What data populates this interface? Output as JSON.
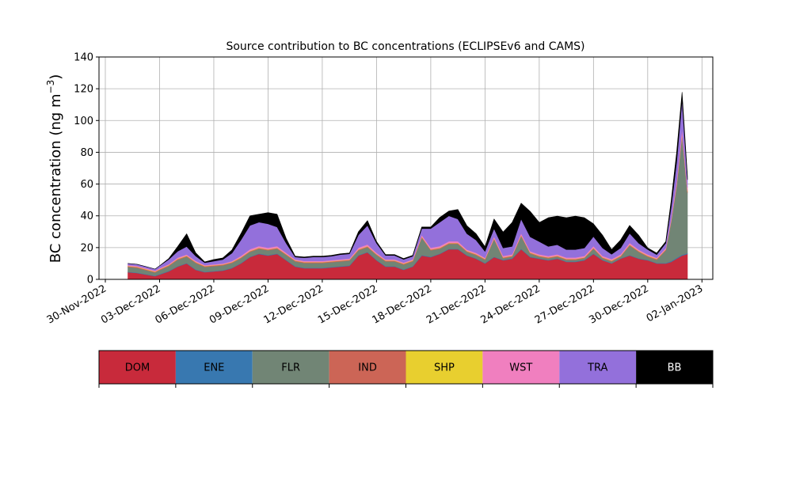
{
  "chart_data": {
    "type": "area",
    "stacked": true,
    "title": "Source contribution to BC concentrations (ECLIPSEv6 and CAMS)",
    "ylabel_main": "BC concentration (ng m",
    "ylabel_sup": "−3",
    "ylabel_close": ")",
    "xlabel": "",
    "ylim": [
      0,
      140
    ],
    "xlim": [
      -0.35,
      33.6
    ],
    "grid": true,
    "y_ticks": [
      0,
      20,
      40,
      60,
      80,
      100,
      120,
      140
    ],
    "x_ticks": [
      {
        "pos": 0,
        "label": "30-Nov-2022"
      },
      {
        "pos": 3,
        "label": "03-Dec-2022"
      },
      {
        "pos": 6,
        "label": "06-Dec-2022"
      },
      {
        "pos": 9,
        "label": "09-Dec-2022"
      },
      {
        "pos": 12,
        "label": "12-Dec-2022"
      },
      {
        "pos": 15,
        "label": "15-Dec-2022"
      },
      {
        "pos": 18,
        "label": "18-Dec-2022"
      },
      {
        "pos": 21,
        "label": "21-Dec-2022"
      },
      {
        "pos": 24,
        "label": "24-Dec-2022"
      },
      {
        "pos": 27,
        "label": "27-Dec-2022"
      },
      {
        "pos": 30,
        "label": "30-Dec-2022"
      },
      {
        "pos": 33,
        "label": "02-Jan-2023"
      }
    ],
    "x_unit": "days since 30-Nov-2022",
    "x": [
      1.25,
      1.75,
      2.25,
      2.75,
      3.0,
      3.5,
      4.0,
      4.5,
      5.0,
      5.5,
      6.0,
      6.5,
      7.0,
      7.5,
      8.0,
      8.5,
      9.0,
      9.5,
      10.0,
      10.5,
      11.0,
      11.5,
      12.0,
      12.5,
      13.0,
      13.5,
      14.0,
      14.5,
      15.0,
      15.5,
      16.0,
      16.5,
      17.0,
      17.5,
      18.0,
      18.5,
      19.0,
      19.5,
      20.0,
      20.5,
      21.0,
      21.5,
      22.0,
      22.5,
      23.0,
      23.5,
      24.0,
      24.5,
      25.0,
      25.5,
      26.0,
      26.5,
      27.0,
      27.5,
      28.0,
      28.5,
      29.0,
      29.5,
      30.0,
      30.5,
      31.0,
      31.3,
      31.6,
      31.9,
      32.2
    ],
    "series": [
      {
        "name": "DOM",
        "color": "#c82a3b",
        "values": [
          4.5,
          4.0,
          3.0,
          2.0,
          3.0,
          5.0,
          8.0,
          10.0,
          6.0,
          4.5,
          5.0,
          5.5,
          7.0,
          10.0,
          14.0,
          16.0,
          15.0,
          16.0,
          12.0,
          8.0,
          7.0,
          7.0,
          7.0,
          7.5,
          8.0,
          8.5,
          15.0,
          17.0,
          12.0,
          8.0,
          8.0,
          6.0,
          8.0,
          15.0,
          14.0,
          16.0,
          19.0,
          19.0,
          15.0,
          13.0,
          10.0,
          14.0,
          12.0,
          13.0,
          19.0,
          14.0,
          13.0,
          12.0,
          13.0,
          11.0,
          11.0,
          12.0,
          16.0,
          12.0,
          10.0,
          13.0,
          15.0,
          13.0,
          12.0,
          10.0,
          10.0,
          11.0,
          13.0,
          15.0,
          16.0
        ]
      },
      {
        "name": "ENE",
        "color": "#3878b0",
        "values": [
          0.3,
          0.3,
          0.3,
          0.3,
          0.3,
          0.3,
          0.3,
          0.3,
          0.3,
          0.3,
          0.3,
          0.3,
          0.3,
          0.3,
          0.3,
          0.3,
          0.3,
          0.3,
          0.3,
          0.3,
          0.3,
          0.3,
          0.3,
          0.3,
          0.3,
          0.3,
          0.3,
          0.3,
          0.3,
          0.3,
          0.3,
          0.3,
          0.3,
          0.3,
          0.3,
          0.3,
          0.3,
          0.3,
          0.3,
          0.3,
          0.3,
          0.3,
          0.3,
          0.3,
          0.3,
          0.3,
          0.3,
          0.3,
          0.3,
          0.3,
          0.3,
          0.3,
          0.3,
          0.3,
          0.3,
          0.3,
          0.3,
          0.3,
          0.3,
          0.3,
          0.3,
          0.5,
          0.5,
          0.5,
          0.5
        ]
      },
      {
        "name": "FLR",
        "color": "#718575",
        "values": [
          3.0,
          3.0,
          2.5,
          2.0,
          2.5,
          3.0,
          4.0,
          4.0,
          4.0,
          3.0,
          3.0,
          3.0,
          3.0,
          3.0,
          3.0,
          3.0,
          3.0,
          3.0,
          3.0,
          3.0,
          3.0,
          3.0,
          3.0,
          3.0,
          3.0,
          3.0,
          3.0,
          3.0,
          3.0,
          3.0,
          3.0,
          3.0,
          3.0,
          11.0,
          4.0,
          3.0,
          3.0,
          3.0,
          2.0,
          2.0,
          2.0,
          11.0,
          1.0,
          1.0,
          8.0,
          2.0,
          1.0,
          1.0,
          1.0,
          1.0,
          1.0,
          1.0,
          3.0,
          1.0,
          1.0,
          1.0,
          6.0,
          4.0,
          2.0,
          2.0,
          8.0,
          25.0,
          45.0,
          75.0,
          38.0
        ]
      },
      {
        "name": "IND",
        "color": "#cc6556",
        "values": [
          0.5,
          0.5,
          0.5,
          0.5,
          0.5,
          0.5,
          0.5,
          0.5,
          0.5,
          0.5,
          0.5,
          0.5,
          0.5,
          0.5,
          0.5,
          0.5,
          0.5,
          0.5,
          0.5,
          0.5,
          0.5,
          0.5,
          0.5,
          0.5,
          0.5,
          0.5,
          0.5,
          0.5,
          0.5,
          0.5,
          0.5,
          0.5,
          0.5,
          0.5,
          0.5,
          0.5,
          0.5,
          0.5,
          0.5,
          0.5,
          0.5,
          0.5,
          0.5,
          0.5,
          0.5,
          0.5,
          0.5,
          0.5,
          0.5,
          0.5,
          0.5,
          0.5,
          0.5,
          0.5,
          0.5,
          0.5,
          0.5,
          0.5,
          0.5,
          0.5,
          0.5,
          0.5,
          1.0,
          1.0,
          1.0
        ]
      },
      {
        "name": "SHP",
        "color": "#e8cf2f",
        "values": [
          0.2,
          0.2,
          0.2,
          0.2,
          0.2,
          0.2,
          0.2,
          0.2,
          0.2,
          0.2,
          0.2,
          0.2,
          0.2,
          0.2,
          0.2,
          0.2,
          0.2,
          0.2,
          0.2,
          0.2,
          0.2,
          0.2,
          0.2,
          0.2,
          0.2,
          0.2,
          0.2,
          0.2,
          0.2,
          0.2,
          0.2,
          0.2,
          0.2,
          0.2,
          0.2,
          0.2,
          0.2,
          0.2,
          0.2,
          0.2,
          0.2,
          0.2,
          0.2,
          0.2,
          0.2,
          0.2,
          0.2,
          0.2,
          0.2,
          0.2,
          0.2,
          0.2,
          0.2,
          0.2,
          0.2,
          0.2,
          0.2,
          0.2,
          0.2,
          0.2,
          0.2,
          0.3,
          0.3,
          0.3,
          0.3
        ]
      },
      {
        "name": "WST",
        "color": "#f07fbf",
        "values": [
          0.5,
          0.5,
          0.5,
          0.5,
          0.5,
          0.5,
          0.7,
          0.7,
          0.7,
          0.5,
          0.5,
          0.5,
          0.5,
          0.8,
          1.0,
          1.0,
          1.0,
          1.0,
          0.8,
          0.6,
          0.6,
          0.6,
          0.6,
          0.6,
          0.6,
          0.6,
          1.0,
          1.0,
          0.8,
          0.6,
          0.6,
          0.6,
          0.6,
          1.0,
          1.0,
          1.0,
          1.0,
          1.0,
          0.8,
          0.8,
          0.6,
          1.0,
          0.8,
          0.8,
          1.0,
          0.8,
          0.8,
          0.8,
          0.8,
          0.8,
          0.8,
          0.8,
          1.0,
          0.8,
          0.8,
          0.8,
          1.0,
          0.8,
          0.8,
          0.6,
          0.8,
          1.5,
          2.0,
          3.0,
          2.0
        ]
      },
      {
        "name": "TRA",
        "color": "#9370db",
        "values": [
          1.0,
          1.0,
          1.0,
          1.0,
          1.5,
          3.0,
          4.0,
          5.0,
          3.0,
          1.5,
          2.0,
          2.5,
          5.0,
          10.0,
          15.0,
          15.0,
          15.0,
          12.0,
          6.0,
          1.5,
          2.0,
          2.5,
          2.5,
          2.5,
          3.0,
          3.0,
          8.0,
          12.0,
          6.0,
          2.5,
          2.5,
          2.0,
          2.0,
          4.0,
          12.0,
          15.0,
          16.0,
          14.0,
          10.0,
          8.0,
          4.0,
          5.0,
          5.0,
          5.0,
          9.0,
          9.0,
          8.0,
          6.0,
          6.0,
          5.0,
          5.0,
          5.0,
          6.0,
          5.0,
          3.0,
          4.0,
          6.0,
          4.0,
          3.0,
          2.0,
          3.0,
          7.0,
          12.0,
          18.0,
          5.0
        ]
      },
      {
        "name": "BB",
        "color": "#000000",
        "values": [
          0.0,
          0.0,
          0.0,
          0.0,
          0.0,
          0.5,
          3.0,
          8.0,
          2.0,
          0.5,
          1.0,
          1.0,
          2.0,
          4.0,
          6.0,
          5.0,
          7.0,
          8.0,
          3.0,
          0.5,
          0.5,
          0.5,
          0.5,
          0.5,
          0.5,
          0.5,
          2.0,
          3.0,
          1.0,
          0.5,
          0.5,
          0.5,
          0.5,
          1.0,
          1.0,
          3.0,
          3.0,
          6.0,
          5.0,
          4.0,
          3.0,
          6.0,
          10.0,
          15.0,
          10.0,
          16.0,
          12.0,
          18.0,
          18.0,
          20.0,
          21.0,
          19.0,
          8.0,
          8.0,
          3.0,
          5.0,
          5.0,
          5.0,
          1.0,
          1.0,
          1.0,
          4.0,
          6.0,
          5.0,
          2.0
        ]
      }
    ],
    "legend": {
      "placement": "below",
      "style": "colorbar"
    }
  }
}
